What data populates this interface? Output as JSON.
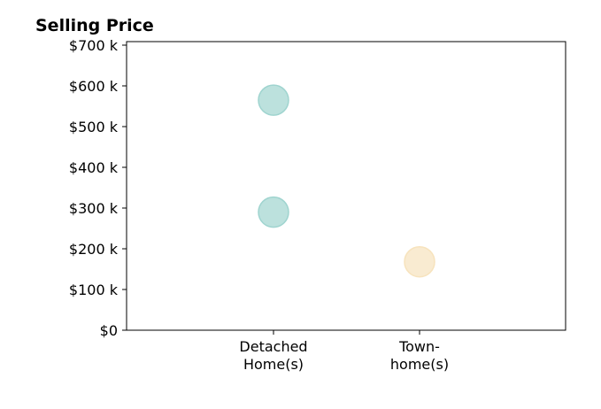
{
  "chart_data": {
    "type": "scatter",
    "title": "Selling Price",
    "xlabel": "",
    "ylabel": "",
    "categories": [
      [
        "Detached",
        "Home(s)"
      ],
      [
        "Town-",
        "home(s)"
      ]
    ],
    "ylim": [
      0,
      700000
    ],
    "yticks": [
      {
        "value": 0,
        "label": "$0"
      },
      {
        "value": 100000,
        "label": "$100 k"
      },
      {
        "value": 200000,
        "label": "$200 k"
      },
      {
        "value": 300000,
        "label": "$300 k"
      },
      {
        "value": 400000,
        "label": "$400 k"
      },
      {
        "value": 500000,
        "label": "$500 k"
      },
      {
        "value": 600000,
        "label": "$600 k"
      },
      {
        "value": 700000,
        "label": "$700 k"
      }
    ],
    "grid": false,
    "points": [
      {
        "category": 0,
        "value": 565000,
        "color": "#9fd4cf"
      },
      {
        "category": 0,
        "value": 290000,
        "color": "#9fd4cf"
      },
      {
        "category": 1,
        "value": 168000,
        "color": "#f7e3bd"
      }
    ]
  }
}
